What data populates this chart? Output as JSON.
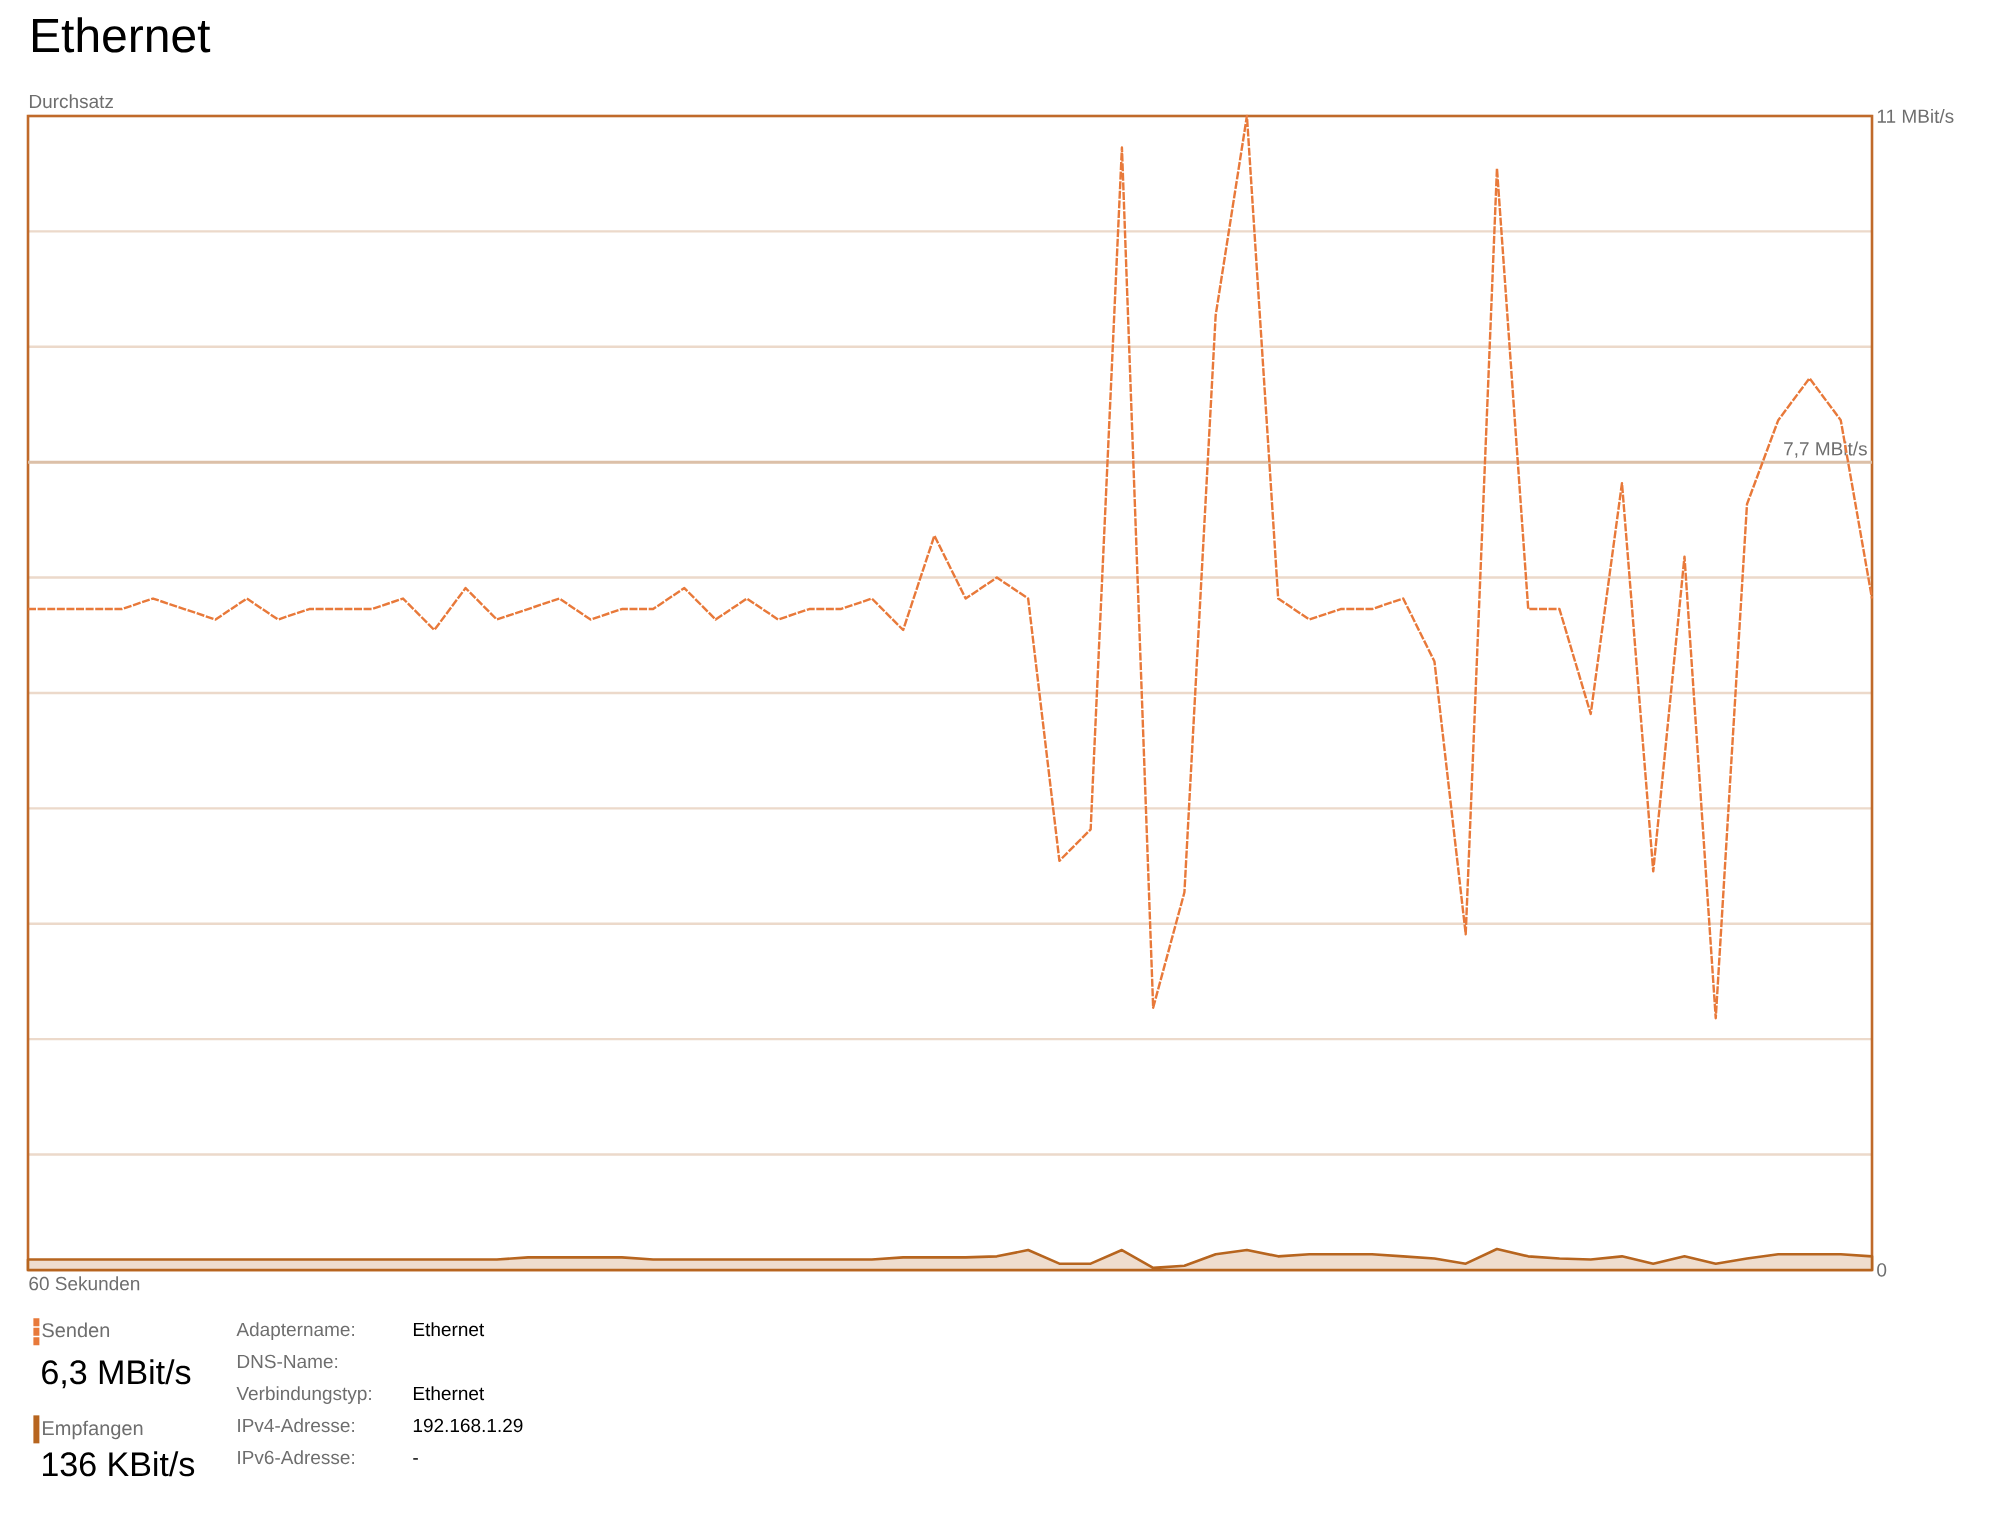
{
  "chart_data": {
    "type": "line",
    "title": "Ethernet",
    "ylabel": "Durchsatz",
    "xlabel": "60 Sekunden",
    "categories": [
      null,
      null,
      null,
      null,
      null,
      null,
      null,
      null,
      null,
      null,
      null,
      null,
      null,
      null,
      null,
      null,
      null,
      null,
      null,
      null,
      null,
      null,
      null,
      null,
      null,
      null,
      null,
      null,
      null,
      null,
      null,
      null,
      null,
      null,
      null,
      null,
      null,
      null,
      null,
      null,
      null,
      null,
      null,
      null,
      null,
      null,
      null,
      null,
      null,
      null,
      null,
      null,
      null,
      null,
      null,
      null,
      null,
      null,
      null,
      null
    ],
    "series": [
      {
        "name": "Senden",
        "line_style": "dashed",
        "color": "#e8793a",
        "values": [
          6.3,
          6.3,
          6.3,
          6.3,
          6.4,
          6.3,
          6.2,
          6.4,
          6.2,
          6.3,
          6.3,
          6.3,
          6.4,
          6.1,
          6.5,
          6.2,
          6.3,
          6.4,
          6.2,
          6.3,
          6.3,
          6.5,
          6.2,
          6.4,
          6.2,
          6.3,
          6.3,
          6.4,
          6.1,
          7.0,
          6.4,
          6.6,
          6.4,
          3.9,
          4.2,
          10.7,
          2.5,
          3.6,
          9.1,
          11,
          6.4,
          6.2,
          6.3,
          6.3,
          6.4,
          5.8,
          3.2,
          10.5,
          6.3,
          6.3,
          5.3,
          7.5,
          3.8,
          6.8,
          2.4,
          7.3,
          8.1,
          8.5,
          8.1,
          6.4
        ]
      },
      {
        "name": "Empfangen",
        "type": "area",
        "line_style": "solid",
        "color": "#b7651f",
        "values": [
          0.1,
          0.1,
          0.1,
          0.1,
          0.1,
          0.1,
          0.1,
          0.1,
          0.1,
          0.1,
          0.1,
          0.1,
          0.1,
          0.1,
          0.1,
          0.1,
          0.12,
          0.12,
          0.12,
          0.12,
          0.1,
          0.1,
          0.1,
          0.1,
          0.1,
          0.1,
          0.1,
          0.1,
          0.12,
          0.12,
          0.12,
          0.13,
          0.19,
          0.06,
          0.06,
          0.19,
          0.02,
          0.04,
          0.15,
          0.19,
          0.13,
          0.15,
          0.15,
          0.15,
          0.13,
          0.11,
          0.06,
          0.2,
          0.13,
          0.11,
          0.1,
          0.13,
          0.06,
          0.13,
          0.06,
          0.11,
          0.15,
          0.15,
          0.15,
          0.13
        ]
      }
    ],
    "ylim": [
      0,
      11
    ],
    "yticks": [
      0,
      {
        "value": 1.1,
        "label": null
      },
      {
        "value": 2.2,
        "label": null
      },
      {
        "value": 3.3,
        "label": null
      },
      {
        "value": 4.4,
        "label": null
      },
      {
        "value": 5.5,
        "label": null
      },
      {
        "value": 6.6,
        "label": null
      },
      {
        "value": 7.7,
        "label": null
      },
      {
        "value": 8.8,
        "label": null
      },
      {
        "value": 9.9,
        "label": null
      },
      {
        "value": 11,
        "label": "11 MBit/s"
      }
    ],
    "grid": "y",
    "legend": "bottom",
    "tick_labels": "y",
    "ref_lines": [
      {
        "axis": "y",
        "value": 7.7,
        "label": "7,7 MBit/s",
        "color": "#dcc0a8"
      }
    ],
    "annotations": [
      "6,3 MBit/s",
      "136 KBit/s",
      "Adaptername:",
      "Ethernet",
      "DNS-Name:",
      "Verbindungstyp:",
      "Ethernet",
      "IPv4-Adresse:",
      "192.168.1.29",
      "IPv6-Adresse:",
      "-"
    ]
  }
}
